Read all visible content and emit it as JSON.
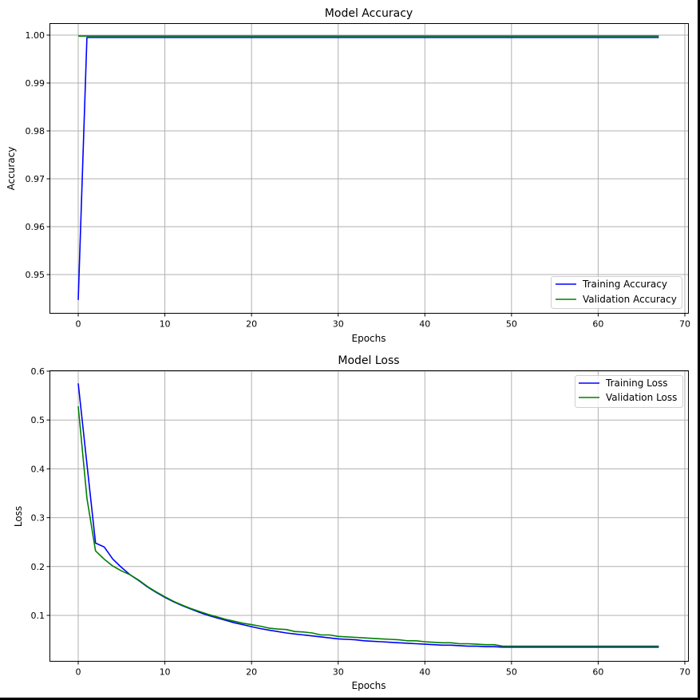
{
  "chart_data": [
    {
      "type": "line",
      "title": "Model Accuracy",
      "xlabel": "Epochs",
      "ylabel": "Accuracy",
      "xlim": [
        -3.4,
        70.4
      ],
      "ylim": [
        0.9425,
        1.0025
      ],
      "xticks": [
        0,
        10,
        20,
        30,
        40,
        50,
        60,
        70
      ],
      "xtick_labels": [
        "0",
        "10",
        "20",
        "30",
        "40",
        "50",
        "60",
        "70"
      ],
      "yticks": [
        0.95,
        0.96,
        0.97,
        0.98,
        0.99,
        1.0
      ],
      "ytick_labels": [
        "0.95",
        "0.96",
        "0.97",
        "0.98",
        "0.99",
        "1.00"
      ],
      "grid": true,
      "legend_position": "lower right",
      "series": [
        {
          "name": "Training Accuracy",
          "color": "#0000ff",
          "x": [
            0,
            1,
            2,
            67
          ],
          "y": [
            0.9447,
            0.9995,
            0.9995,
            0.9995
          ]
        },
        {
          "name": "Validation Accuracy",
          "color": "#008000",
          "x": [
            0,
            1,
            67
          ],
          "y": [
            0.9998,
            0.9998,
            0.9998
          ]
        }
      ]
    },
    {
      "type": "line",
      "title": "Model Loss",
      "xlabel": "Epochs",
      "ylabel": "Loss",
      "xlim": [
        -3.4,
        70.4
      ],
      "ylim": [
        0.005,
        0.6
      ],
      "xticks": [
        0,
        10,
        20,
        30,
        40,
        50,
        60,
        70
      ],
      "xtick_labels": [
        "0",
        "10",
        "20",
        "30",
        "40",
        "50",
        "60",
        "70"
      ],
      "yticks": [
        0.1,
        0.2,
        0.3,
        0.4,
        0.5,
        0.6
      ],
      "ytick_labels": [
        "0.1",
        "0.2",
        "0.3",
        "0.4",
        "0.5",
        "0.6"
      ],
      "grid": true,
      "legend_position": "upper right",
      "series": [
        {
          "name": "Training Loss",
          "color": "#0000ff",
          "x": [
            0,
            1,
            2,
            3,
            4,
            5,
            6,
            7,
            8,
            9,
            10,
            11,
            12,
            13,
            14,
            15,
            16,
            17,
            18,
            19,
            20,
            21,
            22,
            23,
            24,
            25,
            26,
            27,
            28,
            29,
            30,
            31,
            32,
            33,
            34,
            35,
            36,
            37,
            38,
            39,
            40,
            41,
            42,
            43,
            44,
            45,
            46,
            47,
            48,
            49,
            50,
            51,
            52,
            53,
            54,
            55,
            56,
            57,
            58,
            59,
            60,
            61,
            62,
            63,
            64,
            65,
            66,
            67
          ],
          "y": [
            0.575,
            0.41,
            0.248,
            0.24,
            0.215,
            0.198,
            0.183,
            0.171,
            0.158,
            0.147,
            0.137,
            0.128,
            0.12,
            0.113,
            0.106,
            0.1,
            0.095,
            0.09,
            0.085,
            0.081,
            0.077,
            0.073,
            0.07,
            0.067,
            0.064,
            0.062,
            0.06,
            0.058,
            0.056,
            0.054,
            0.052,
            0.051,
            0.05,
            0.048,
            0.047,
            0.046,
            0.045,
            0.044,
            0.043,
            0.042,
            0.041,
            0.04,
            0.039,
            0.039,
            0.038,
            0.037,
            0.037,
            0.036,
            0.036,
            0.035,
            0.035,
            0.035,
            0.035,
            0.035,
            0.035,
            0.035,
            0.035,
            0.035,
            0.035,
            0.035,
            0.035,
            0.035,
            0.035,
            0.035,
            0.035,
            0.035,
            0.035,
            0.035
          ]
        },
        {
          "name": "Validation Loss",
          "color": "#008000",
          "x": [
            0,
            1,
            2,
            3,
            4,
            5,
            6,
            7,
            8,
            9,
            10,
            11,
            12,
            13,
            14,
            15,
            16,
            17,
            18,
            19,
            20,
            21,
            22,
            23,
            24,
            25,
            26,
            27,
            28,
            29,
            30,
            31,
            32,
            33,
            34,
            35,
            36,
            37,
            38,
            39,
            40,
            41,
            42,
            43,
            44,
            45,
            46,
            47,
            48,
            49,
            50,
            51,
            52,
            53,
            54,
            55,
            56,
            57,
            58,
            59,
            60,
            61,
            62,
            63,
            64,
            65,
            66,
            67
          ],
          "y": [
            0.528,
            0.34,
            0.232,
            0.215,
            0.201,
            0.191,
            0.183,
            0.172,
            0.159,
            0.148,
            0.138,
            0.129,
            0.121,
            0.114,
            0.108,
            0.102,
            0.097,
            0.092,
            0.088,
            0.084,
            0.081,
            0.078,
            0.074,
            0.072,
            0.071,
            0.067,
            0.066,
            0.064,
            0.06,
            0.06,
            0.057,
            0.056,
            0.055,
            0.054,
            0.053,
            0.052,
            0.051,
            0.05,
            0.048,
            0.048,
            0.046,
            0.045,
            0.044,
            0.044,
            0.042,
            0.042,
            0.041,
            0.04,
            0.04,
            0.037,
            0.037,
            0.037,
            0.037,
            0.037,
            0.037,
            0.037,
            0.037,
            0.037,
            0.037,
            0.037,
            0.037,
            0.037,
            0.037,
            0.037,
            0.037,
            0.037,
            0.037,
            0.037
          ]
        }
      ]
    }
  ]
}
